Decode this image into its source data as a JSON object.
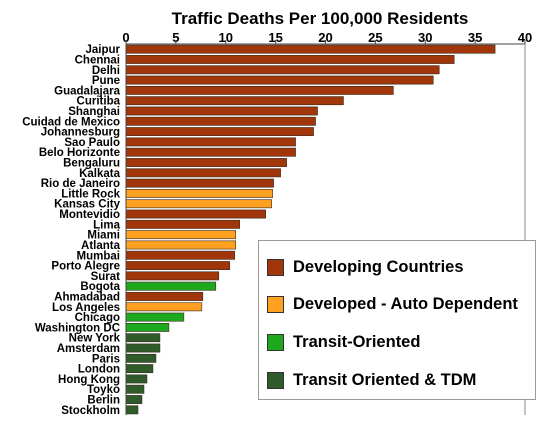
{
  "chart_data": {
    "type": "bar",
    "orientation": "horizontal",
    "title": "Traffic Deaths Per 100,000 Residents",
    "xlim": [
      0,
      40
    ],
    "xticks": [
      0,
      5,
      10,
      15,
      20,
      25,
      30,
      35,
      40
    ],
    "x_axis_position": "top",
    "grid": false,
    "legend_placement": "bottom-right",
    "categories": [
      "Jaipur",
      "Chennai",
      "Delhi",
      "Pune",
      "Guadalajara",
      "Curitiba",
      "Shanghai",
      "Cuidad de Mexico",
      "Johannesburg",
      "Sao Paulo",
      "Belo Horizonte",
      "Bengaluru",
      "Kalkata",
      "Rio de Janeiro",
      "Little Rock",
      "Kansas City",
      "Montevidio",
      "Lima",
      "Miami",
      "Atlanta",
      "Mumbai",
      "Porto Alegre",
      "Surat",
      "Bogota",
      "Ahmadabad",
      "Los Angeles",
      "Chicago",
      "Washington DC",
      "New York",
      "Amsterdam",
      "Paris",
      "London",
      "Hong Kong",
      "Toyko",
      "Berlin",
      "Stockholm"
    ],
    "values": [
      37.0,
      32.9,
      31.4,
      30.8,
      26.8,
      21.8,
      19.2,
      19.0,
      18.8,
      17.0,
      17.0,
      16.1,
      15.5,
      14.8,
      14.7,
      14.6,
      14.0,
      11.4,
      11.0,
      11.0,
      10.9,
      10.4,
      9.3,
      9.0,
      7.7,
      7.6,
      5.8,
      4.3,
      3.4,
      3.4,
      3.0,
      2.7,
      2.1,
      1.8,
      1.6,
      1.2
    ],
    "groups": [
      "developing",
      "developing",
      "developing",
      "developing",
      "developing",
      "developing",
      "developing",
      "developing",
      "developing",
      "developing",
      "developing",
      "developing",
      "developing",
      "developing",
      "auto",
      "auto",
      "developing",
      "developing",
      "auto",
      "auto",
      "developing",
      "developing",
      "developing",
      "transit",
      "developing",
      "auto",
      "transit",
      "transit",
      "tdm",
      "tdm",
      "tdm",
      "tdm",
      "tdm",
      "tdm",
      "tdm",
      "tdm"
    ],
    "legend": [
      {
        "key": "developing",
        "label": "Developing Countries",
        "color": "#A0360A"
      },
      {
        "key": "auto",
        "label": "Developed - Auto Dependent",
        "color": "#FFA020"
      },
      {
        "key": "transit",
        "label": "Transit-Oriented",
        "color": "#1EA81E"
      },
      {
        "key": "tdm",
        "label": "Transit Oriented & TDM",
        "color": "#2F5A2A"
      }
    ]
  }
}
